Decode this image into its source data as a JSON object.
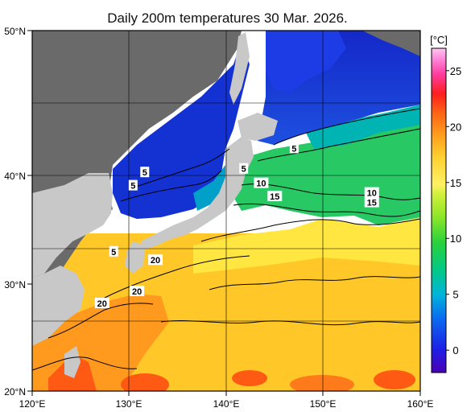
{
  "title": "Daily 200m temperatures 30 Mar. 2026.",
  "map": {
    "lon_min": 120,
    "lon_max": 160,
    "lat_min": 20,
    "lat_max": 50,
    "lon_ticks": [
      "120°E",
      "130°E",
      "140°E",
      "150°E",
      "160°E"
    ],
    "lat_ticks": [
      "20°N",
      "30°N",
      "40°N",
      "50°N"
    ],
    "land_color": "#c8c8c8",
    "dark_land_color": "#6a6a6a"
  },
  "colorbar": {
    "unit": "[°C]",
    "min": -2,
    "max": 27,
    "ticks": [
      "0",
      "5",
      "10",
      "15",
      "20",
      "25"
    ],
    "tick_values": [
      0,
      5,
      10,
      15,
      20,
      25
    ],
    "colors": [
      "#4b00b4",
      "#1e1ee6",
      "#0a6ef0",
      "#00b4dc",
      "#00c88c",
      "#28d23c",
      "#8ce628",
      "#d2f03c",
      "#fff03c",
      "#ffd232",
      "#ffa01e",
      "#ff6414",
      "#ff1e1e",
      "#ff3ca0",
      "#ff8cdc",
      "#ffc8f0"
    ]
  },
  "contour_labels": [
    {
      "text": "5",
      "lon": 131.6,
      "lat": 38.2
    },
    {
      "text": "5",
      "lon": 130.4,
      "lat": 37.1
    },
    {
      "text": "5",
      "lon": 141.8,
      "lat": 38.5
    },
    {
      "text": "5",
      "lon": 147.0,
      "lat": 40.2
    },
    {
      "text": "10",
      "lon": 143.6,
      "lat": 37.3
    },
    {
      "text": "15",
      "lon": 145.0,
      "lat": 36.2
    },
    {
      "text": "10",
      "lon": 155.0,
      "lat": 36.5
    },
    {
      "text": "15",
      "lon": 155.0,
      "lat": 35.7
    },
    {
      "text": "5",
      "lon": 128.4,
      "lat": 31.6
    },
    {
      "text": "20",
      "lon": 132.7,
      "lat": 30.9
    },
    {
      "text": "20",
      "lon": 130.8,
      "lat": 28.3
    },
    {
      "text": "20",
      "lon": 127.2,
      "lat": 27.3
    }
  ]
}
